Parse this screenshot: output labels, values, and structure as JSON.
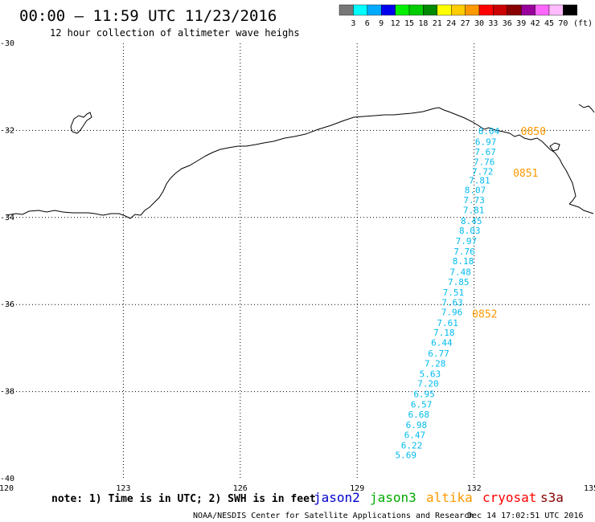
{
  "title": "00:00 — 11:59 UTC 11/23/2016",
  "subtitle": "12 hour collection of altimeter wave heighs",
  "scale": {
    "unit": "(ft)",
    "bins": [
      {
        "color": "#777777",
        "label": "3"
      },
      {
        "color": "#00ffff",
        "label": "6"
      },
      {
        "color": "#00aaff",
        "label": "9"
      },
      {
        "color": "#0000ee",
        "label": "12"
      },
      {
        "color": "#00ee00",
        "label": "15"
      },
      {
        "color": "#00cc00",
        "label": "18"
      },
      {
        "color": "#008800",
        "label": "21"
      },
      {
        "color": "#ffff00",
        "label": "24"
      },
      {
        "color": "#ffcc00",
        "label": "27"
      },
      {
        "color": "#ff9900",
        "label": "30"
      },
      {
        "color": "#ff0000",
        "label": "33"
      },
      {
        "color": "#cc0000",
        "label": "36"
      },
      {
        "color": "#880000",
        "label": "39"
      },
      {
        "color": "#990099",
        "label": "42"
      },
      {
        "color": "#ff66ff",
        "label": "45"
      },
      {
        "color": "#ffbbff",
        "label": "70"
      },
      {
        "color": "#000000",
        "label": ""
      }
    ]
  },
  "axes": {
    "lon_ticks": [
      "120",
      "123",
      "126",
      "129",
      "132",
      "135"
    ],
    "lat_ticks": [
      "-30",
      "-32",
      "-34",
      "-36",
      "-38",
      "-40"
    ]
  },
  "track": {
    "color": "#00bbee",
    "time_color": "#ff9900",
    "points": [
      {
        "lon": 132.38,
        "lat": -32.01,
        "swh": "8.04"
      },
      {
        "lon": 132.3,
        "lat": -32.26,
        "swh": "6.97"
      },
      {
        "lon": 132.29,
        "lat": -32.49,
        "swh": "7.67"
      },
      {
        "lon": 132.26,
        "lat": -32.72,
        "swh": "7.76"
      },
      {
        "lon": 132.22,
        "lat": -32.94,
        "swh": "7.72"
      },
      {
        "lon": 132.14,
        "lat": -33.15,
        "swh": "7.81"
      },
      {
        "lon": 132.03,
        "lat": -33.37,
        "swh": "8.07"
      },
      {
        "lon": 132.0,
        "lat": -33.6,
        "swh": "7.73"
      },
      {
        "lon": 131.99,
        "lat": -33.83,
        "swh": "7.81"
      },
      {
        "lon": 131.93,
        "lat": -34.08,
        "swh": "8.45"
      },
      {
        "lon": 131.89,
        "lat": -34.3,
        "swh": "8.03"
      },
      {
        "lon": 131.8,
        "lat": -34.54,
        "swh": "7.97"
      },
      {
        "lon": 131.75,
        "lat": -34.78,
        "swh": "7.76"
      },
      {
        "lon": 131.72,
        "lat": -35.0,
        "swh": "8.18"
      },
      {
        "lon": 131.65,
        "lat": -35.25,
        "swh": "7.48"
      },
      {
        "lon": 131.6,
        "lat": -35.48,
        "swh": "7.85"
      },
      {
        "lon": 131.47,
        "lat": -35.72,
        "swh": "7.51"
      },
      {
        "lon": 131.44,
        "lat": -35.95,
        "swh": "7.63"
      },
      {
        "lon": 131.43,
        "lat": -36.17,
        "swh": "7.96"
      },
      {
        "lon": 131.32,
        "lat": -36.42,
        "swh": "7.61"
      },
      {
        "lon": 131.23,
        "lat": -36.64,
        "swh": "7.18"
      },
      {
        "lon": 131.17,
        "lat": -36.87,
        "swh": "6.44"
      },
      {
        "lon": 131.09,
        "lat": -37.12,
        "swh": "6.77"
      },
      {
        "lon": 131.0,
        "lat": -37.35,
        "swh": "7.28"
      },
      {
        "lon": 130.87,
        "lat": -37.59,
        "swh": "5.63"
      },
      {
        "lon": 130.82,
        "lat": -37.81,
        "swh": "7.20"
      },
      {
        "lon": 130.72,
        "lat": -38.05,
        "swh": "6.95"
      },
      {
        "lon": 130.65,
        "lat": -38.29,
        "swh": "6.57"
      },
      {
        "lon": 130.58,
        "lat": -38.52,
        "swh": "6.68"
      },
      {
        "lon": 130.52,
        "lat": -38.76,
        "swh": "6.98"
      },
      {
        "lon": 130.48,
        "lat": -38.99,
        "swh": "6.47"
      },
      {
        "lon": 130.4,
        "lat": -39.23,
        "swh": "6.22"
      },
      {
        "lon": 130.25,
        "lat": -39.46,
        "swh": "5.69"
      }
    ],
    "times": [
      {
        "lon": 133.2,
        "lat": -32.01,
        "label": "0850"
      },
      {
        "lon": 133.0,
        "lat": -32.97,
        "label": "0851"
      },
      {
        "lon": 131.95,
        "lat": -36.21,
        "label": "0852"
      }
    ]
  },
  "footer": {
    "note": "note: 1) Time is in UTC; 2) SWH is in feet",
    "credit": "NOAA/NESDIS Center for Satellite Applications and Research",
    "generated": "Dec 14 17:02:51 UTC 2016",
    "satellites": [
      {
        "name": "jason2",
        "color": "#0000cc"
      },
      {
        "name": "jason3",
        "color": "#00aa00"
      },
      {
        "name": "altika",
        "color": "#ff9900"
      },
      {
        "name": "cryosat",
        "color": "#ff0000"
      },
      {
        "name": "s3a",
        "color": "#880000"
      }
    ]
  }
}
